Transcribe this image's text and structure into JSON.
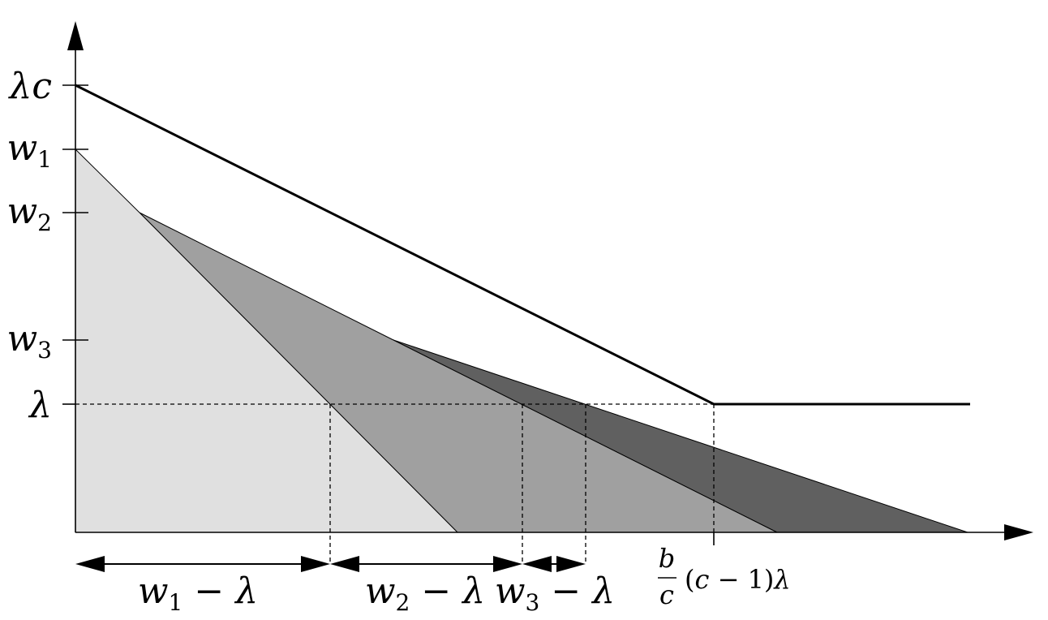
{
  "y_ticks": [
    {
      "id": "lambda-c",
      "var": "λc",
      "sub": ""
    },
    {
      "id": "w1",
      "var": "w",
      "sub": "1"
    },
    {
      "id": "w2",
      "var": "w",
      "sub": "2"
    },
    {
      "id": "w3",
      "var": "w",
      "sub": "3"
    },
    {
      "id": "lambda",
      "var": "λ",
      "sub": ""
    }
  ],
  "intervals": [
    {
      "id": "w1",
      "var": "w",
      "sub": "1",
      "rest": " − λ"
    },
    {
      "id": "w2",
      "var": "w",
      "sub": "2",
      "rest": " − λ"
    },
    {
      "id": "w3",
      "var": "w",
      "sub": "3",
      "rest": " − λ"
    }
  ],
  "x_marker": {
    "numerator": "b",
    "denominator": "c",
    "paren_open": "(",
    "c": "c",
    "minus_one": " − 1",
    "paren_close": ")",
    "lambda": "λ"
  },
  "colors": {
    "light_region": "#e0e0e0",
    "mid_region": "#a0a0a0",
    "dark_region": "#606060",
    "ink": "#000000"
  }
}
